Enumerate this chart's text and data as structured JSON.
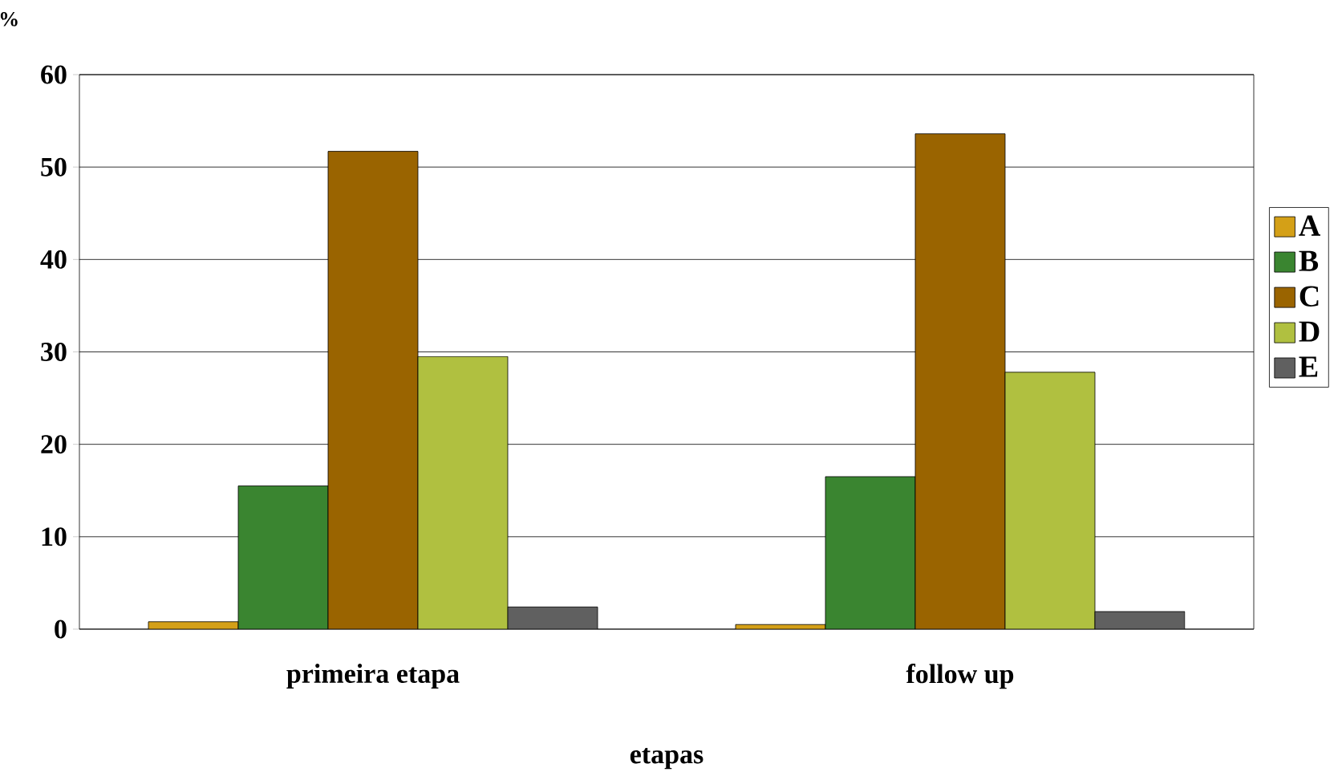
{
  "chart_data": {
    "type": "bar",
    "xlabel": "etapas",
    "ylabel": "%",
    "categories": [
      "primeira etapa",
      "follow up"
    ],
    "series": [
      {
        "name": "A",
        "color": "#d4a017",
        "values": [
          0.8,
          0.5
        ]
      },
      {
        "name": "B",
        "color": "#3a8530",
        "values": [
          15.5,
          16.5
        ]
      },
      {
        "name": "C",
        "color": "#9a6400",
        "values": [
          51.7,
          53.6
        ]
      },
      {
        "name": "D",
        "color": "#b0c040",
        "values": [
          29.5,
          27.8
        ]
      },
      {
        "name": "E",
        "color": "#606060",
        "values": [
          2.4,
          1.9
        ]
      }
    ],
    "ylim": [
      0,
      60
    ],
    "yticks": [
      0,
      10,
      20,
      30,
      40,
      50,
      60
    ],
    "grid": "y",
    "legend": "right"
  }
}
